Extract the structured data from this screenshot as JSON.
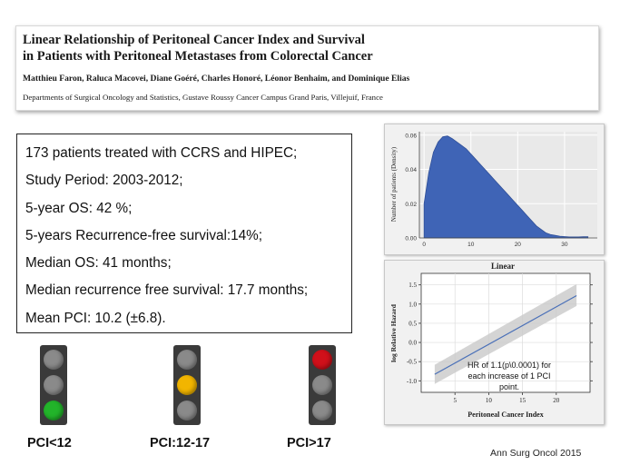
{
  "header": {
    "title_line1": "Linear Relationship of Peritoneal Cancer Index and Survival",
    "title_line2": "in Patients with Peritoneal Metastases from Colorectal Cancer",
    "authors": "Matthieu Faron, Raluca Macovei, Diane Goéré, Charles Honoré, Léonor Benhaim, and Dominique Elias",
    "departments": "Departments of Surgical Oncology and Statistics, Gustave Roussy Cancer Campus Grand Paris, Villejuif, France"
  },
  "facts": [
    "173 patients treated with CCRS and HIPEC;",
    "Study Period: 2003-2012;",
    "5-year OS: 42 %;",
    "5-years Recurrence-free survival:14%;",
    "Median OS: 41 months;",
    "Median recurrence free survival: 17.7 months;",
    "Mean PCI: 10.2 (±6.8)."
  ],
  "traffic_lights": [
    {
      "label": "PCI<12",
      "active": "green"
    },
    {
      "label": "PCI:12-17",
      "active": "yellow"
    },
    {
      "label": "PCI>17",
      "active": "red"
    }
  ],
  "colors": {
    "green": "#22b42a",
    "yellow": "#f2b500",
    "red": "#d0101a",
    "off": "#8a8a8a",
    "density_fill": "#3f64b6",
    "fit_line": "#4a70b8"
  },
  "citation": "Ann Surg Oncol 2015",
  "chart_data": [
    {
      "type": "area",
      "title": "",
      "xlabel": "",
      "ylabel": "Number of patients (Density)",
      "x_ticks": [
        "0",
        "10",
        "20",
        "30"
      ],
      "y_ticks": [
        "0.00",
        "0.02",
        "0.04",
        "0.06"
      ],
      "xlim": [
        -1,
        37
      ],
      "ylim": [
        0,
        0.062
      ],
      "x": [
        0,
        1,
        2,
        3,
        4,
        5,
        6,
        7,
        8,
        9,
        10,
        11,
        12,
        13,
        14,
        15,
        16,
        17,
        18,
        19,
        20,
        21,
        22,
        23,
        24,
        25,
        26,
        27,
        28,
        29,
        30,
        31,
        32,
        33,
        34,
        35
      ],
      "values": [
        0.02,
        0.038,
        0.05,
        0.056,
        0.059,
        0.0595,
        0.058,
        0.056,
        0.054,
        0.052,
        0.049,
        0.046,
        0.043,
        0.04,
        0.037,
        0.034,
        0.031,
        0.028,
        0.025,
        0.022,
        0.019,
        0.016,
        0.013,
        0.01,
        0.007,
        0.005,
        0.003,
        0.002,
        0.0015,
        0.001,
        0.0008,
        0.0006,
        0.0006,
        0.0006,
        0.0007,
        0.0007
      ],
      "grid": true
    },
    {
      "type": "line",
      "title": "Linear",
      "xlabel": "Peritoneal Cancer Index",
      "ylabel": "log Relative Hazard",
      "x_ticks": [
        "5",
        "10",
        "15",
        "20"
      ],
      "y_ticks": [
        "-1.0",
        "-0.5",
        "0.0",
        "0.5",
        "1.0",
        "1.5"
      ],
      "xlim": [
        0,
        25
      ],
      "ylim": [
        -1.3,
        1.8
      ],
      "x": [
        2,
        23
      ],
      "values": [
        -0.83,
        1.22
      ],
      "ci_lower": [
        -1.08,
        0.95
      ],
      "ci_upper": [
        -0.58,
        1.52
      ],
      "annotation": [
        "HR of 1.1(p\\0.0001) for",
        "each increase of 1 PCI",
        "point."
      ],
      "grid": true
    }
  ]
}
